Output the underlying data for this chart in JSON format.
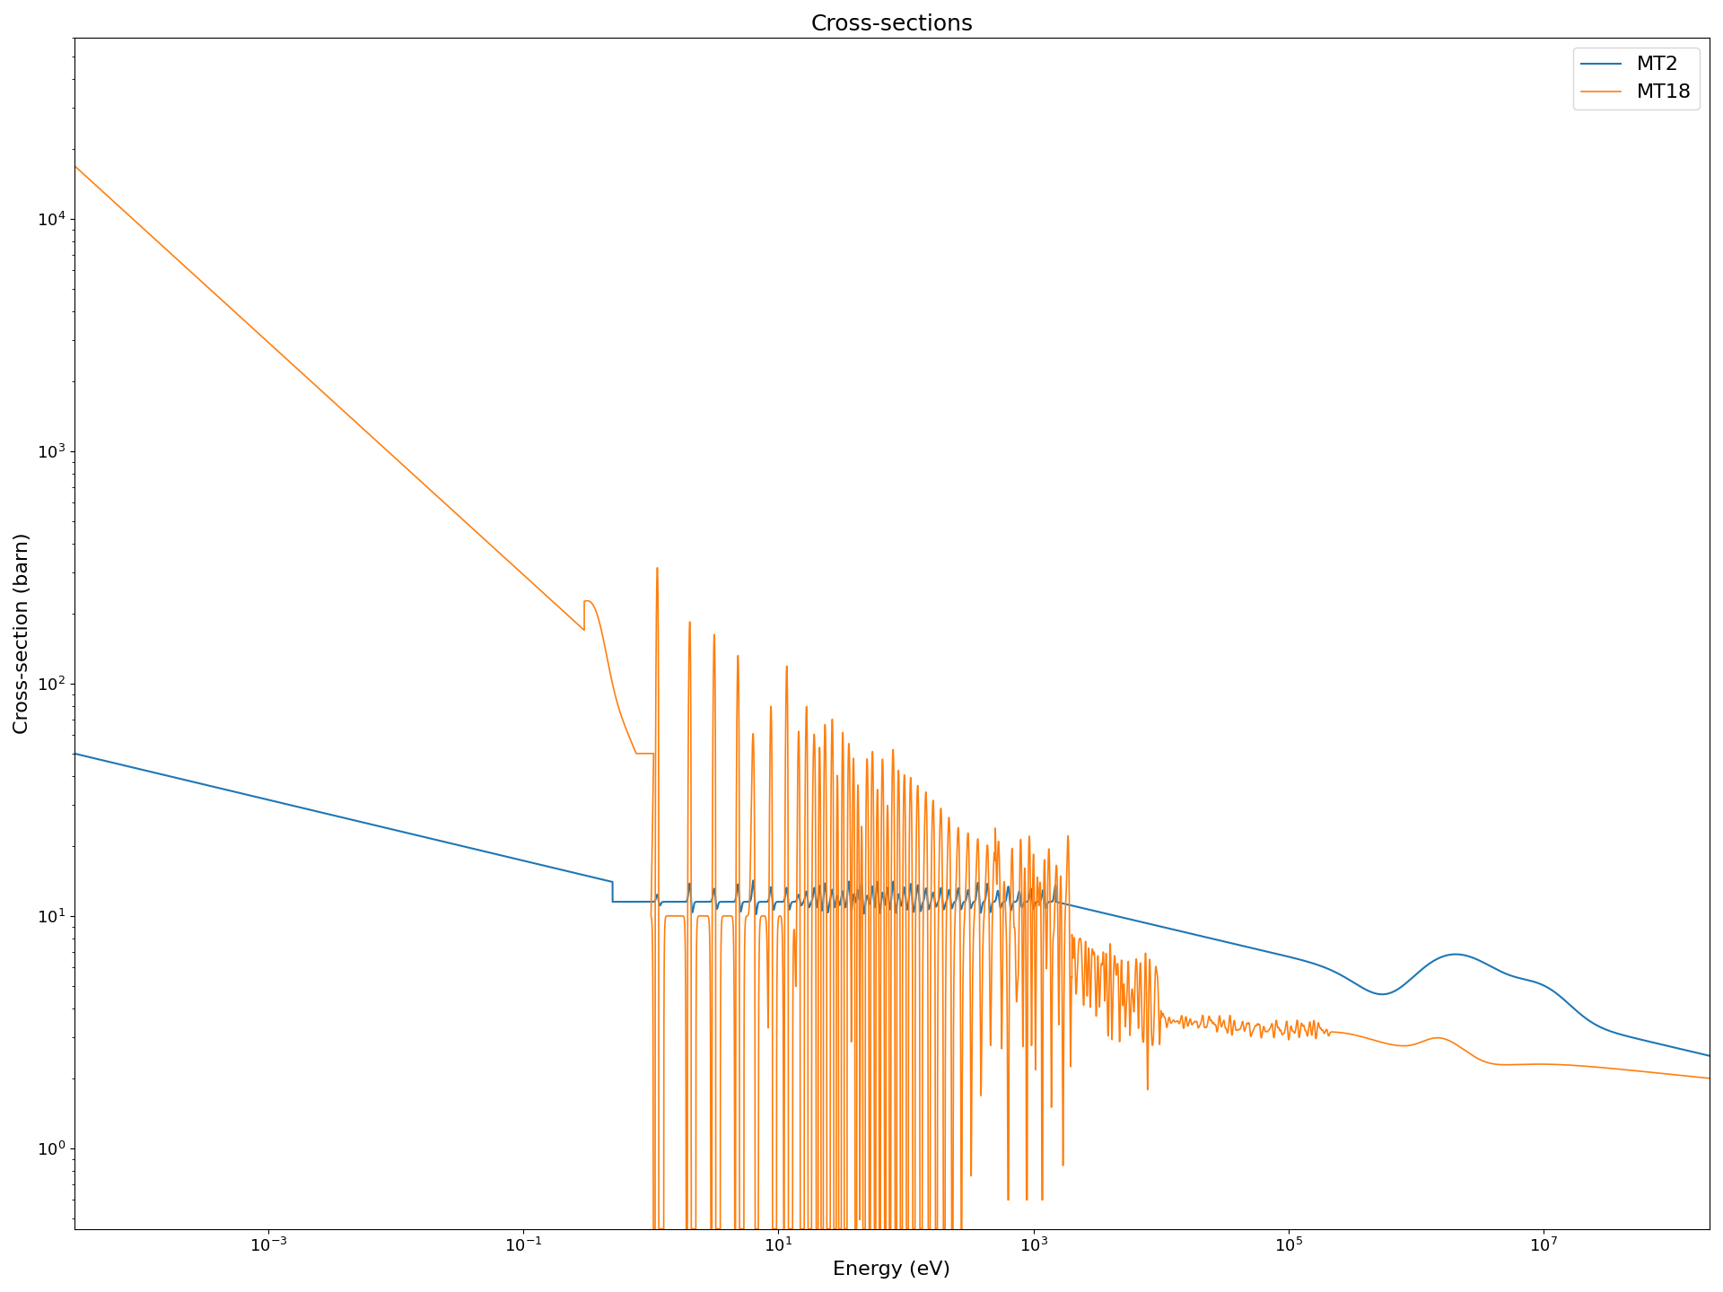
{
  "title": "Cross-sections",
  "xlabel": "Energy (eV)",
  "ylabel": "Cross-section (barn)",
  "legend_labels": [
    "MT2",
    "MT18"
  ],
  "colors": [
    "#1f77b4",
    "#ff7f0e"
  ],
  "xlim": [
    3e-05,
    200000000.0
  ],
  "ylim": [
    0.45,
    60000.0
  ],
  "figsize": [
    19.2,
    14.4
  ],
  "dpi": 100
}
